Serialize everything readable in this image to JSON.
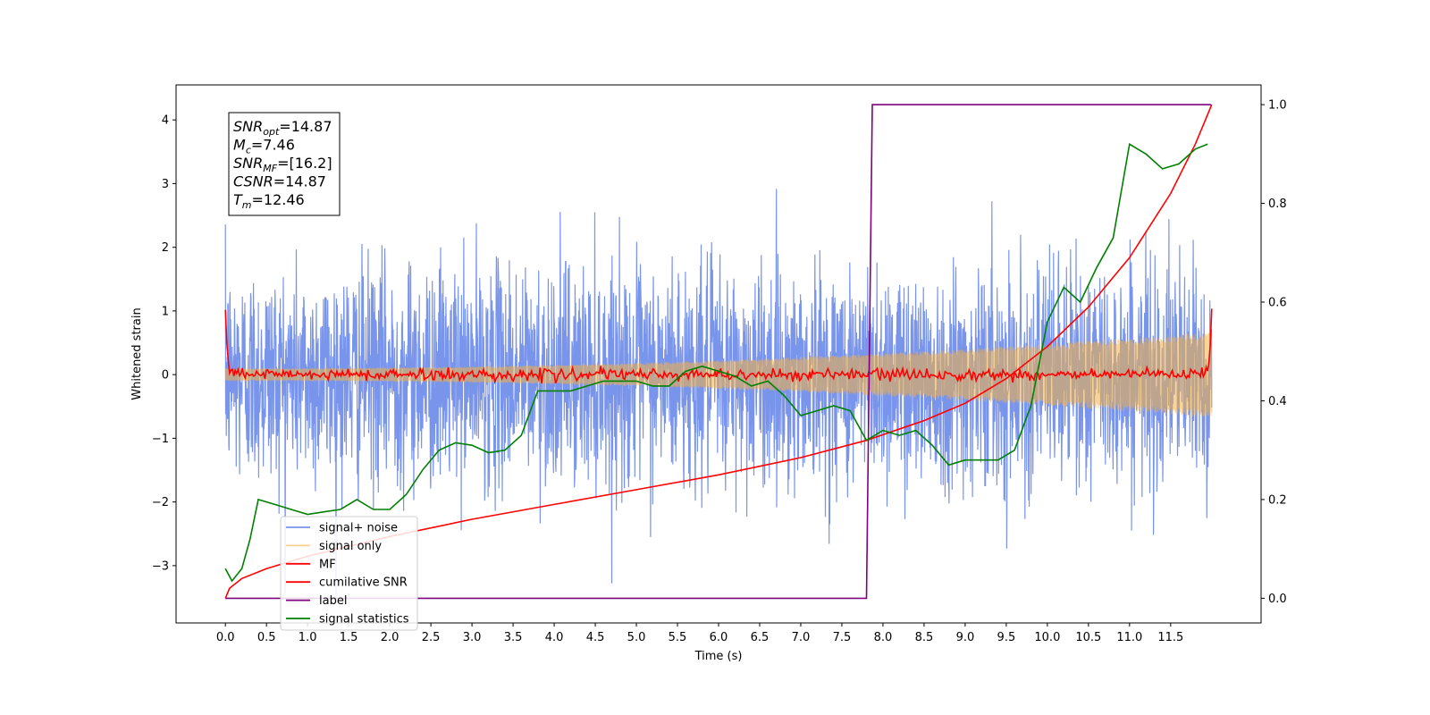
{
  "chart_data": {
    "type": "line",
    "xlabel": "Time (s)",
    "ylabel": "Whitened strain",
    "xlim": [
      -0.6,
      12.6
    ],
    "ylim_left": [
      -3.9,
      4.55
    ],
    "ylim_right": [
      -0.05,
      1.04
    ],
    "x_ticks": [
      "0.0",
      "0.5",
      "1.0",
      "1.5",
      "2.0",
      "2.5",
      "3.0",
      "3.5",
      "4.0",
      "4.5",
      "5.0",
      "5.5",
      "6.0",
      "6.5",
      "7.0",
      "7.5",
      "8.0",
      "8.5",
      "9.0",
      "9.5",
      "10.0",
      "10.5",
      "11.0",
      "11.5"
    ],
    "y_ticks_left": [
      "−3",
      "−2",
      "−1",
      "0",
      "1",
      "2",
      "3",
      "4"
    ],
    "y_ticks_right": [
      "0.0",
      "0.2",
      "0.4",
      "0.6",
      "0.8",
      "1.0"
    ],
    "annotation": [
      {
        "var": "SNR",
        "sub": "opt",
        "value": "=14.87"
      },
      {
        "var": "M",
        "sub": "c",
        "value": "=7.46"
      },
      {
        "var": "SNR",
        "sub": "MF",
        "value": "=[16.2]"
      },
      {
        "var": "CSNR",
        "sub": "",
        "value": "=14.87"
      },
      {
        "var": "T",
        "sub": "m",
        "value": "=12.46"
      }
    ],
    "legend_position": "lower-left",
    "series": [
      {
        "name": "signal+ noise",
        "color": "#5b7de6",
        "axis": "left",
        "kind": "noise",
        "noise_std": 0.85,
        "duration": 12.0
      },
      {
        "name": "signal only",
        "color": "#f5b041",
        "axis": "left",
        "kind": "chirp",
        "amp_start": 0.1,
        "amp_end": 0.68
      },
      {
        "name": "MF",
        "color": "#ff0000",
        "axis": "left",
        "x": [
          0.0,
          0.02,
          0.05,
          0.1,
          0.5,
          1.0,
          2.0,
          3.0,
          4.0,
          5.0,
          6.0,
          7.0,
          8.0,
          9.0,
          10.0,
          11.0,
          11.9,
          11.95,
          11.98,
          12.0
        ],
        "y": [
          1.0,
          0.4,
          0.05,
          0.0,
          0.0,
          0.0,
          0.0,
          0.0,
          0.0,
          0.0,
          0.0,
          0.0,
          0.0,
          0.0,
          0.0,
          0.0,
          0.0,
          0.05,
          0.4,
          1.0
        ]
      },
      {
        "name": "cumilative SNR",
        "color": "#ff0000",
        "axis": "right",
        "x": [
          0.0,
          0.05,
          0.2,
          0.5,
          1.0,
          2.0,
          3.0,
          4.0,
          5.0,
          6.0,
          7.0,
          7.8,
          8.5,
          9.0,
          9.5,
          10.0,
          10.5,
          11.0,
          11.5,
          11.8,
          12.0
        ],
        "y": [
          0.0,
          0.02,
          0.04,
          0.06,
          0.085,
          0.125,
          0.16,
          0.19,
          0.22,
          0.25,
          0.285,
          0.32,
          0.36,
          0.395,
          0.445,
          0.51,
          0.59,
          0.69,
          0.82,
          0.92,
          1.0
        ]
      },
      {
        "name": "label",
        "color": "#800080",
        "axis": "right",
        "x": [
          0.0,
          7.8,
          7.87,
          11.99
        ],
        "y": [
          0.0,
          0.0,
          1.0,
          1.0
        ]
      },
      {
        "name": "signal statistics",
        "color": "#008000",
        "axis": "right",
        "x": [
          0.0,
          0.08,
          0.2,
          0.3,
          0.4,
          0.6,
          0.8,
          1.0,
          1.2,
          1.4,
          1.6,
          1.8,
          2.0,
          2.2,
          2.4,
          2.6,
          2.8,
          3.0,
          3.2,
          3.4,
          3.6,
          3.8,
          4.0,
          4.2,
          4.4,
          4.6,
          4.8,
          5.0,
          5.2,
          5.4,
          5.6,
          5.8,
          6.0,
          6.2,
          6.4,
          6.6,
          6.8,
          7.0,
          7.2,
          7.4,
          7.6,
          7.8,
          8.0,
          8.2,
          8.4,
          8.6,
          8.8,
          9.0,
          9.2,
          9.4,
          9.6,
          9.8,
          10.0,
          10.2,
          10.4,
          10.6,
          10.8,
          11.0,
          11.2,
          11.4,
          11.6,
          11.8,
          11.95
        ],
        "y": [
          0.06,
          0.035,
          0.06,
          0.12,
          0.2,
          0.19,
          0.18,
          0.17,
          0.175,
          0.18,
          0.2,
          0.18,
          0.18,
          0.21,
          0.26,
          0.3,
          0.315,
          0.31,
          0.295,
          0.3,
          0.33,
          0.42,
          0.42,
          0.42,
          0.43,
          0.44,
          0.44,
          0.44,
          0.43,
          0.43,
          0.46,
          0.47,
          0.46,
          0.45,
          0.43,
          0.44,
          0.41,
          0.37,
          0.38,
          0.39,
          0.38,
          0.32,
          0.34,
          0.33,
          0.34,
          0.31,
          0.27,
          0.28,
          0.28,
          0.28,
          0.3,
          0.39,
          0.56,
          0.63,
          0.6,
          0.67,
          0.73,
          0.92,
          0.9,
          0.87,
          0.88,
          0.91,
          0.92
        ]
      }
    ]
  }
}
